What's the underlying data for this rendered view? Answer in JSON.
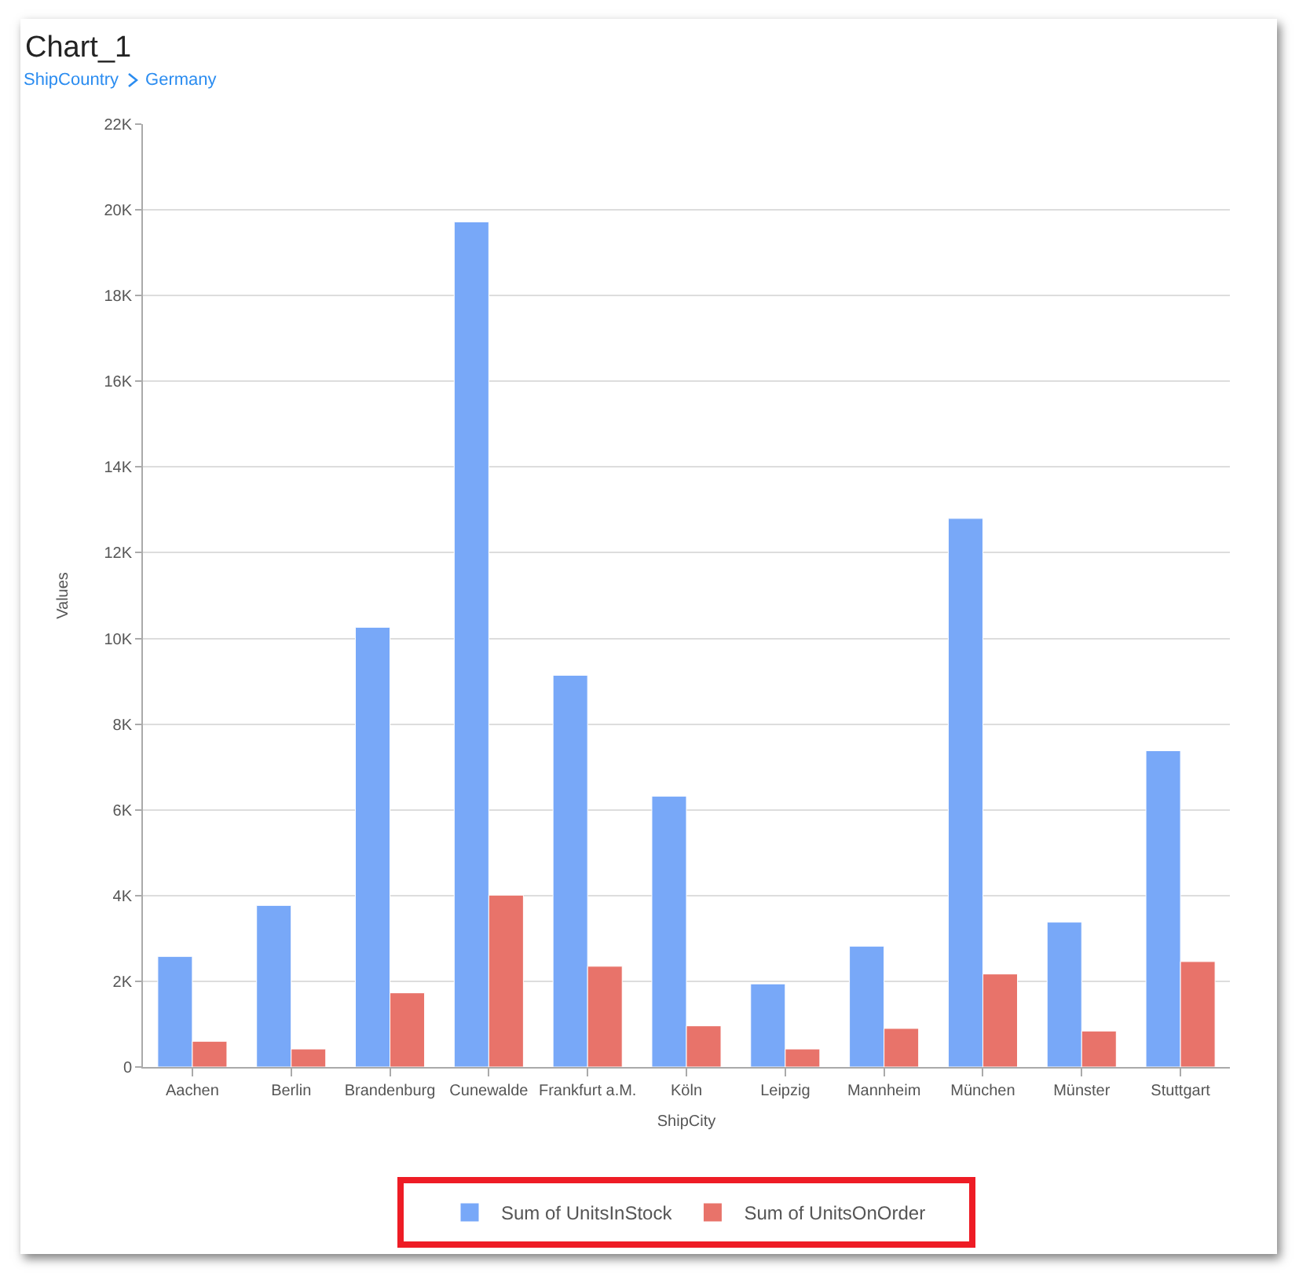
{
  "chart_data": {
    "type": "bar",
    "title": "Chart_1",
    "annotations": [
      "ShipCountry",
      "Germany"
    ],
    "xlabel": "ShipCity",
    "ylabel": "Values",
    "categories": [
      "Aachen",
      "Berlin",
      "Brandenburg",
      "Cunewalde",
      "Frankfurt a.M.",
      "Köln",
      "Leipzig",
      "Mannheim",
      "München",
      "Münster",
      "Stuttgart"
    ],
    "series": [
      {
        "name": "Sum of UnitsInStock",
        "color": "#78a8f8",
        "values": [
          2580,
          3770,
          10260,
          19720,
          9140,
          6320,
          1940,
          2820,
          12800,
          3380,
          7380
        ]
      },
      {
        "name": "Sum of UnitsOnOrder",
        "color": "#e8736a",
        "values": [
          600,
          420,
          1730,
          4010,
          2350,
          960,
          420,
          900,
          2170,
          840,
          2460
        ]
      }
    ],
    "ylim": [
      0,
      22000
    ],
    "yticks": [
      0,
      {
        "value": 2000,
        "label": "2K"
      },
      {
        "value": 4000,
        "label": "4K"
      },
      {
        "value": 6000,
        "label": "6K"
      },
      {
        "value": 8000,
        "label": "8K"
      },
      {
        "value": 10000,
        "label": "10K"
      },
      {
        "value": 12000,
        "label": "12K"
      },
      {
        "value": 14000,
        "label": "14K"
      },
      {
        "value": 16000,
        "label": "16K"
      },
      {
        "value": 18000,
        "label": "18K"
      },
      {
        "value": 20000,
        "label": "20K"
      },
      {
        "value": 22000,
        "label": "22K"
      }
    ],
    "grid": "y",
    "legend": "bottom"
  }
}
